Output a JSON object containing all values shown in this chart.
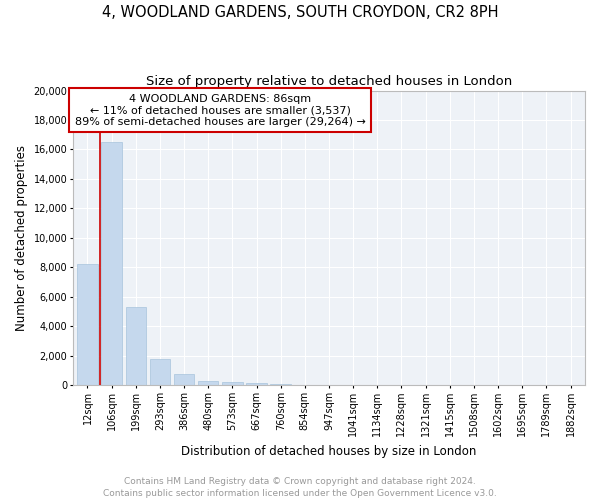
{
  "title": "4, WOODLAND GARDENS, SOUTH CROYDON, CR2 8PH",
  "subtitle": "Size of property relative to detached houses in London",
  "xlabel": "Distribution of detached houses by size in London",
  "ylabel": "Number of detached properties",
  "categories": [
    "12sqm",
    "106sqm",
    "199sqm",
    "293sqm",
    "386sqm",
    "480sqm",
    "573sqm",
    "667sqm",
    "760sqm",
    "854sqm",
    "947sqm",
    "1041sqm",
    "1134sqm",
    "1228sqm",
    "1321sqm",
    "1415sqm",
    "1508sqm",
    "1602sqm",
    "1695sqm",
    "1789sqm",
    "1882sqm"
  ],
  "values": [
    8200,
    16500,
    5300,
    1800,
    750,
    280,
    220,
    150,
    100,
    0,
    0,
    0,
    0,
    0,
    0,
    0,
    0,
    0,
    0,
    0,
    0
  ],
  "bar_color": "#c5d8ed",
  "bar_edge_color": "#a8c4dc",
  "annotation_title": "4 WOODLAND GARDENS: 86sqm",
  "annotation_line1": "← 11% of detached houses are smaller (3,537)",
  "annotation_line2": "89% of semi-detached houses are larger (29,264) →",
  "annotation_box_color": "#ffffff",
  "annotation_border_color": "#cc0000",
  "ylim": [
    0,
    20000
  ],
  "yticks": [
    0,
    2000,
    4000,
    6000,
    8000,
    10000,
    12000,
    14000,
    16000,
    18000,
    20000
  ],
  "background_color": "#ffffff",
  "plot_bg_color": "#eef2f7",
  "grid_color": "#ffffff",
  "footer_line1": "Contains HM Land Registry data © Crown copyright and database right 2024.",
  "footer_line2": "Contains public sector information licensed under the Open Government Licence v3.0.",
  "title_fontsize": 10.5,
  "subtitle_fontsize": 9.5,
  "axis_label_fontsize": 8.5,
  "tick_fontsize": 7,
  "annotation_fontsize": 8,
  "footer_fontsize": 6.5
}
